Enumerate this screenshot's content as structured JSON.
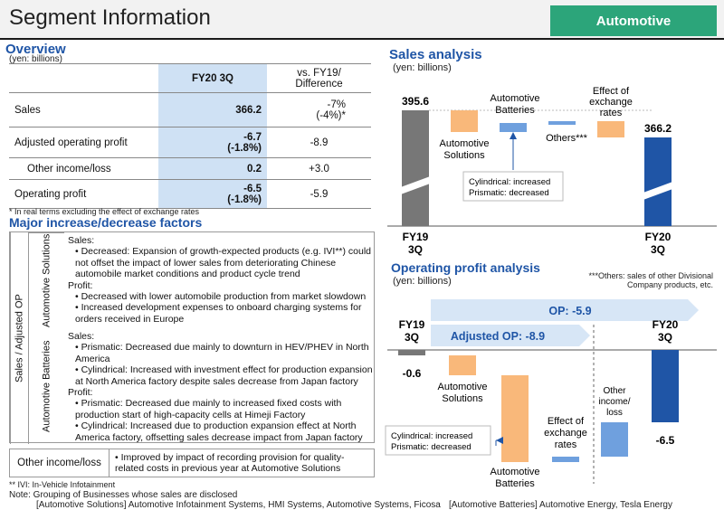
{
  "header": {
    "title": "Segment Information",
    "tag": "Automotive"
  },
  "overview": {
    "title": "Overview",
    "unit": "(yen: billions)",
    "col_current": "FY20 3Q",
    "col_diff": "vs. FY19/ Difference",
    "rows": [
      {
        "label": "Sales",
        "value": "366.2",
        "diff": "-7%",
        "diff2": "(-4%)*"
      },
      {
        "label": "Adjusted operating profit",
        "value": "-6.7",
        "value2": "(-1.8%)",
        "diff": "-8.9"
      },
      {
        "label": "Other income/loss",
        "value": "0.2",
        "diff": "+3.0"
      },
      {
        "label": "Operating profit",
        "value": "-6.5",
        "value2": "(-1.8%)",
        "diff": "-5.9"
      }
    ],
    "footnote": "* In real terms excluding the effect of exchange rates"
  },
  "factors": {
    "title": "Major increase/decrease factors",
    "side_label": "Sales / Adjusted OP",
    "auto_solutions": {
      "label": "Automotive Solutions",
      "sales_head": "Sales:",
      "sales_1": "• Decreased: Expansion of growth-expected products (e.g. IVI**) could not offset the impact of lower sales from deteriorating Chinese automobile market conditions and product cycle trend",
      "profit_head": "Profit:",
      "profit_1": "• Decreased with lower automobile production from market slowdown",
      "profit_2": "• Increased development expenses to onboard charging systems for orders received in Europe"
    },
    "auto_batteries": {
      "label": "Automotive Batteries",
      "sales_head": "Sales:",
      "sales_1": "• Prismatic: Decreased due mainly to downturn in HEV/PHEV in North America",
      "sales_2": "• Cylindrical: Increased with investment effect for production expansion at North America factory despite sales decrease from Japan factory",
      "profit_head": "Profit:",
      "profit_1": "• Prismatic: Decreased due mainly to increased fixed costs with production start of high-capacity cells at Himeji Factory",
      "profit_2": "• Cylindrical: Increased due to production expansion effect at North America factory, offsetting sales decrease impact from Japan factory"
    },
    "other_label": "Other income/loss",
    "other_text": "• Improved by impact of recording provision for quality-related costs in previous year at Automotive Solutions"
  },
  "footer": {
    "ivi": "** IVI: In-Vehicle Infotainment",
    "note": "Note: Grouping of Businesses whose sales are disclosed",
    "groups_left": "[Automotive Solutions] Automotive Infotainment Systems, HMI Systems, Automotive Systems, Ficosa",
    "groups_right": "[Automotive Batteries] Automotive Energy, Tesla Energy"
  },
  "sales_analysis": {
    "title": "Sales analysis",
    "unit": "(yen: billions)",
    "start_value": "395.6",
    "end_value": "366.2",
    "start_label_1": "FY19",
    "start_label_2": "3Q",
    "end_label_1": "FY20",
    "end_label_2": "3Q",
    "auto_solutions_1": "Automotive",
    "auto_solutions_2": "Solutions",
    "auto_batteries_1": "Automotive",
    "auto_batteries_2": "Batteries",
    "others": "Others***",
    "fx_1": "Effect of",
    "fx_2": "exchange",
    "fx_3": "rates",
    "callout_1": "Cylindrical: increased",
    "callout_2": "Prismatic: decreased"
  },
  "op_analysis": {
    "title": "Operating profit analysis",
    "unit": "(yen: billions)",
    "others_note_1": "***Others: sales of other Divisional",
    "others_note_2": "Company products, etc.",
    "op_arrow": "OP: -5.9",
    "adj_arrow": "Adjusted OP: -8.9",
    "start_label_1": "FY19",
    "start_label_2": "3Q",
    "end_label_1": "FY20",
    "end_label_2": "3Q",
    "start_value": "-0.6",
    "end_value": "-6.5",
    "auto_solutions_1": "Automotive",
    "auto_solutions_2": "Solutions",
    "auto_batteries_1": "Automotive",
    "auto_batteries_2": "Batteries",
    "fx_1": "Effect of",
    "fx_2": "exchange",
    "fx_3": "rates",
    "other_1": "Other",
    "other_2": "income/",
    "other_3": "loss",
    "callout_1": "Cylindrical: increased",
    "callout_2": "Prismatic: decreased"
  },
  "colors": {
    "accent": "#1f55a6",
    "tag": "#2ca57a",
    "orange": "#f9b87a",
    "blue_bar": "#6fa0de",
    "dark_blue": "#1f55a6",
    "grey_bar": "#777777"
  }
}
